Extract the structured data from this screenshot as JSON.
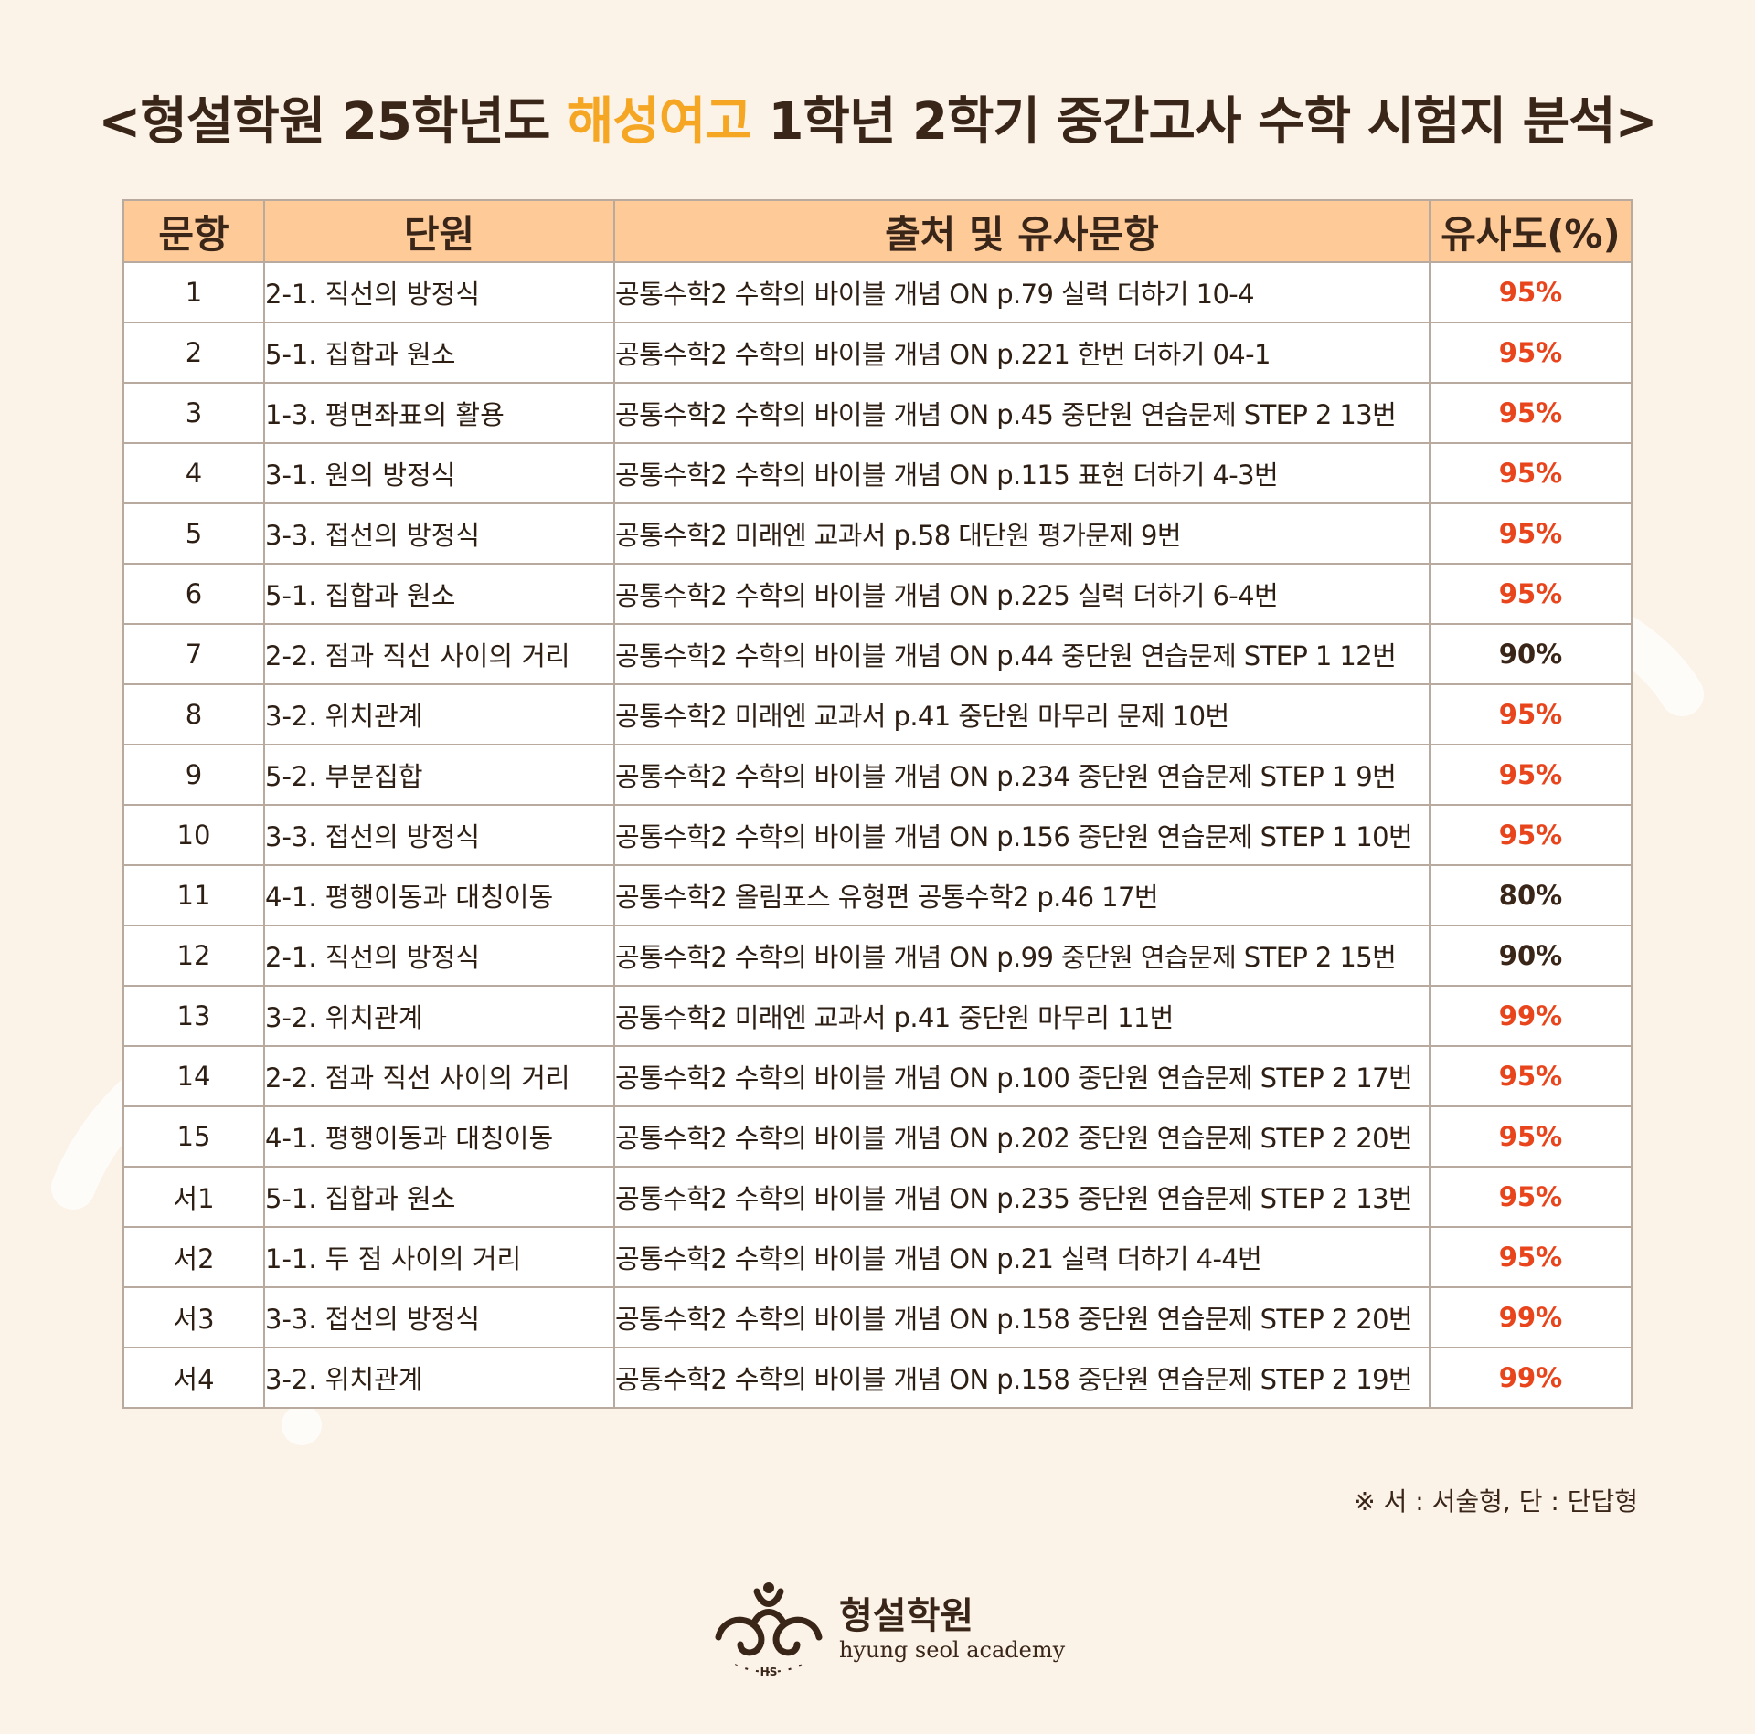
{
  "title": {
    "prefix": "<형설학원 25학년도 ",
    "highlight": "해성여고",
    "suffix": " 1학년 2학기 중간고사 수학 시험지 분석>"
  },
  "table": {
    "headers": [
      "문항",
      "단원",
      "출처 및 유사문항",
      "유사도(%)"
    ],
    "rows": [
      {
        "no": "1",
        "unit": "2-1. 직선의 방정식",
        "source": "공통수학2 수학의 바이블 개념 ON p.79 실력 더하기 10-4",
        "similarity": "95%"
      },
      {
        "no": "2",
        "unit": "5-1. 집합과 원소",
        "source": "공통수학2 수학의 바이블 개념 ON p.221 한번 더하기 04-1",
        "similarity": "95%"
      },
      {
        "no": "3",
        "unit": "1-3. 평면좌표의 활용",
        "source": "공통수학2 수학의 바이블 개념 ON p.45 중단원 연습문제 STEP 2 13번",
        "similarity": "95%"
      },
      {
        "no": "4",
        "unit": "3-1. 원의 방정식",
        "source": "공통수학2 수학의 바이블 개념 ON p.115 표현 더하기 4-3번",
        "similarity": "95%"
      },
      {
        "no": "5",
        "unit": "3-3. 접선의 방정식",
        "source": "공통수학2 미래엔 교과서 p.58 대단원 평가문제 9번",
        "similarity": "95%"
      },
      {
        "no": "6",
        "unit": "5-1. 집합과 원소",
        "source": "공통수학2 수학의 바이블 개념 ON p.225 실력 더하기 6-4번",
        "similarity": "95%"
      },
      {
        "no": "7",
        "unit": "2-2. 점과 직선 사이의 거리",
        "source": "공통수학2 수학의 바이블 개념 ON p.44 중단원 연습문제 STEP 1 12번",
        "similarity": "90%"
      },
      {
        "no": "8",
        "unit": "3-2. 위치관계",
        "source": "공통수학2 미래엔 교과서 p.41 중단원 마무리 문제 10번",
        "similarity": "95%"
      },
      {
        "no": "9",
        "unit": "5-2. 부분집합",
        "source": "공통수학2 수학의 바이블 개념 ON p.234 중단원 연습문제 STEP 1 9번",
        "similarity": "95%"
      },
      {
        "no": "10",
        "unit": "3-3. 접선의 방정식",
        "source": "공통수학2 수학의 바이블 개념 ON p.156 중단원 연습문제 STEP 1 10번",
        "similarity": "95%"
      },
      {
        "no": "11",
        "unit": "4-1. 평행이동과 대칭이동",
        "source": "공통수학2 올림포스 유형편 공통수학2 p.46 17번",
        "similarity": "80%"
      },
      {
        "no": "12",
        "unit": "2-1. 직선의 방정식",
        "source": "공통수학2 수학의 바이블 개념 ON p.99 중단원 연습문제 STEP 2 15번",
        "similarity": "90%"
      },
      {
        "no": "13",
        "unit": "3-2. 위치관계",
        "source": "공통수학2 미래엔 교과서 p.41 중단원 마무리 11번",
        "similarity": "99%"
      },
      {
        "no": "14",
        "unit": "2-2. 점과 직선 사이의 거리",
        "source": "공통수학2 수학의 바이블 개념 ON p.100 중단원 연습문제 STEP 2 17번",
        "similarity": "95%"
      },
      {
        "no": "15",
        "unit": "4-1. 평행이동과 대칭이동",
        "source": "공통수학2 수학의 바이블 개념 ON p.202 중단원 연습문제 STEP 2 20번",
        "similarity": "95%"
      },
      {
        "no": "서1",
        "unit": "5-1. 집합과 원소",
        "source": "공통수학2 수학의 바이블 개념 ON p.235 중단원 연습문제 STEP 2 13번",
        "similarity": "95%"
      },
      {
        "no": "서2",
        "unit": "1-1. 두 점 사이의 거리",
        "source": "공통수학2 수학의 바이블 개념 ON p.21 실력 더하기 4-4번",
        "similarity": "95%"
      },
      {
        "no": "서3",
        "unit": "3-3. 접선의 방정식",
        "source": "공통수학2 수학의 바이블 개념 ON p.158 중단원 연습문제 STEP 2 20번",
        "similarity": "99%"
      },
      {
        "no": "서4",
        "unit": "3-2. 위치관계",
        "source": "공통수학2 수학의 바이블 개념 ON p.158 중단원 연습문제 STEP 2 19번",
        "similarity": "99%"
      }
    ]
  },
  "footnote": "※ 서 : 서술형, 단 : 단답형",
  "logo": {
    "name": "형설학원",
    "subtitle": "hyung seol academy",
    "mark_text": "HS"
  },
  "colors": {
    "background": "#fbf2e8",
    "header_bg": "#fdca98",
    "title_highlight": "#f5a623",
    "similarity_high": "#e8451c",
    "similarity_low": "#3a2618",
    "text": "#3a2618"
  }
}
